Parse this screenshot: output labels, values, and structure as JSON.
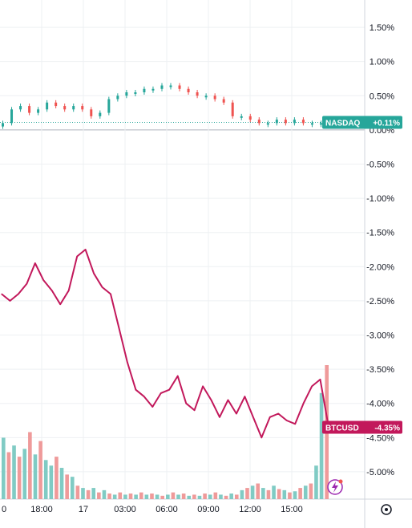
{
  "chart_data": {
    "type": "line",
    "title": "",
    "yaxis": {
      "unit": "%",
      "ticks": [
        "1.50%",
        "1.00%",
        "0.50%",
        "0.00%",
        "-0.50%",
        "-1.00%",
        "-1.50%",
        "-2.00%",
        "-2.50%",
        "-3.00%",
        "-3.50%",
        "-4.00%",
        "-4.50%",
        "-5.00%"
      ],
      "ylim": [
        -5.4,
        1.9
      ]
    },
    "xaxis": {
      "ticks": [
        "0",
        "18:00",
        "17",
        "03:00",
        "06:00",
        "09:00",
        "12:00",
        "15:00"
      ]
    },
    "grid": true,
    "series": [
      {
        "name": "NASDAQ",
        "color": "#26a69a",
        "last_label": "+0.11%",
        "style": "candles",
        "values": [
          0.1,
          0.3,
          0.35,
          0.25,
          0.3,
          0.4,
          0.35,
          0.3,
          0.35,
          0.3,
          0.2,
          0.25,
          0.45,
          0.5,
          0.55,
          0.55,
          0.6,
          0.6,
          0.65,
          0.65,
          0.6,
          0.55,
          0.5,
          0.5,
          0.45,
          0.4,
          0.2,
          0.2,
          0.15,
          0.1,
          0.1,
          0.15,
          0.1,
          0.15,
          0.1,
          0.1,
          0.1,
          0.11
        ]
      },
      {
        "name": "BTCUSD",
        "color": "#c2185b",
        "last_label": "-4.35%",
        "style": "line",
        "values": [
          -2.4,
          -2.5,
          -2.4,
          -2.25,
          -1.95,
          -2.2,
          -2.35,
          -2.55,
          -2.35,
          -1.85,
          -1.75,
          -2.1,
          -2.3,
          -2.4,
          -2.9,
          -3.4,
          -3.8,
          -3.9,
          -4.05,
          -3.85,
          -3.8,
          -3.6,
          -4.0,
          -4.1,
          -3.75,
          -3.95,
          -4.2,
          -3.95,
          -4.15,
          -3.9,
          -4.2,
          -4.5,
          -4.2,
          -4.15,
          -4.25,
          -4.3,
          -4.0,
          -3.75,
          -3.65,
          -4.35
        ]
      }
    ],
    "volume": {
      "colors": {
        "up": "#80cbc4",
        "down": "#ef9a9a"
      },
      "values": [
        55,
        42,
        48,
        38,
        45,
        60,
        40,
        52,
        35,
        30,
        38,
        28,
        22,
        20,
        12,
        10,
        8,
        10,
        6,
        8,
        5,
        4,
        6,
        4,
        5,
        4,
        6,
        4,
        5,
        4,
        3,
        4,
        6,
        4,
        5,
        3,
        4,
        3,
        5,
        4,
        6,
        4,
        3,
        5,
        4,
        8,
        10,
        12,
        14,
        10,
        8,
        12,
        9,
        8,
        6,
        7,
        10,
        12,
        14,
        30,
        95,
        120
      ],
      "up": [
        true,
        false,
        true,
        false,
        true,
        false,
        true,
        false,
        true,
        true,
        false,
        true,
        false,
        true,
        false,
        true,
        false,
        true,
        false,
        true,
        false,
        true,
        false,
        true,
        false,
        true,
        false,
        true,
        false,
        true,
        false,
        true,
        false,
        true,
        false,
        true,
        false,
        true,
        false,
        true,
        false,
        true,
        false,
        true,
        false,
        true,
        false,
        true,
        false,
        true,
        false,
        true,
        false,
        true,
        false,
        true,
        false,
        true,
        false,
        true,
        true,
        false
      ]
    }
  }
}
